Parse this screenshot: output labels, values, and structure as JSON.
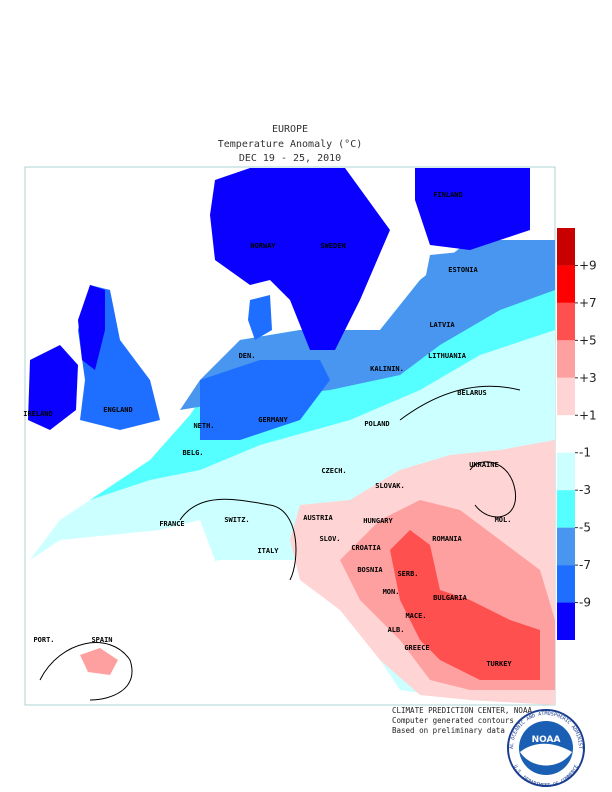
{
  "title": [
    "EUROPE",
    "Temperature Anomaly (°C)",
    "DEC 19 - 25, 2010"
  ],
  "colorbar": {
    "ticks": [
      {
        "value": 9,
        "label": "+9"
      },
      {
        "value": 7,
        "label": "+7"
      },
      {
        "value": 5,
        "label": "+5"
      },
      {
        "value": 3,
        "label": "+3"
      },
      {
        "value": 1,
        "label": "+1"
      },
      -1,
      -3,
      -5,
      -7,
      -9
    ],
    "colors": [
      "#c80000",
      "#ff0000",
      "#ff5050",
      "#ffa0a0",
      "#ffd4d4",
      "#ffffff",
      "#ccffff",
      "#55ffff",
      "#4896f0",
      "#1e6eff",
      "#0a00ff"
    ]
  },
  "labels": [
    "NORWAY",
    "SWEDEN",
    "FINLAND",
    "ESTONIA",
    "LATVIA",
    "LITHUANIA",
    "KALININ.",
    "DEN.",
    "IRELAND",
    "ENGLAND",
    "NETH.",
    "GERMANY",
    "POLAND",
    "BELARUS",
    "BELG.",
    "CZECH.",
    "SLOVAK.",
    "UKRAINE",
    "FRANCE",
    "SWITZ.",
    "AUSTRIA",
    "HUNGARY",
    "MOL.",
    "ROMANIA",
    "SLOV.",
    "CROATIA",
    "ITALY",
    "BOSNIA",
    "SERB.",
    "MON.",
    "BULGARIA",
    "MACE.",
    "ALB.",
    "GREECE",
    "TURKEY",
    "PORT.",
    "SPAIN"
  ],
  "footer": [
    "CLIMATE PREDICTION CENTER, NOAA",
    "Computer generated contours",
    "Based on preliminary data"
  ],
  "logo": {
    "name": "NOAA",
    "ring_top": "NATIONAL OCEANIC AND ATMOSPHERIC ADMINISTRATION",
    "ring_bottom": "U.S. DEPARTMENT OF COMMERCE"
  }
}
